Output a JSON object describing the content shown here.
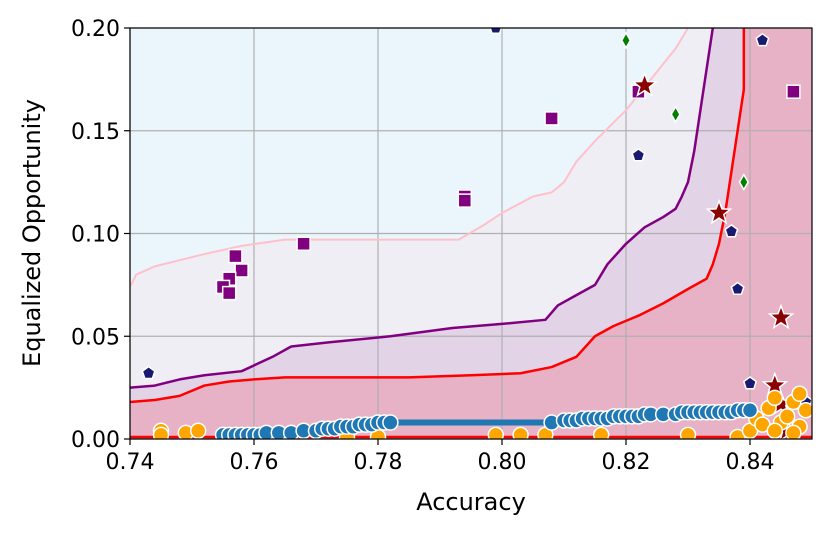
{
  "chart_data": {
    "type": "scatter",
    "xlabel": "Accuracy",
    "ylabel": "Equalized Opportunity",
    "xlim": [
      0.74,
      0.85
    ],
    "ylim": [
      0.0,
      0.2
    ],
    "xticks": [
      "0.74",
      "0.76",
      "0.78",
      "0.80",
      "0.82",
      "0.84"
    ],
    "xtick_values": [
      0.74,
      0.76,
      0.78,
      0.8,
      0.82,
      0.84
    ],
    "yticks": [
      "0.00",
      "0.05",
      "0.10",
      "0.15",
      "0.20"
    ],
    "ytick_values": [
      0.0,
      0.05,
      0.1,
      0.15,
      0.2
    ],
    "grid": true,
    "legend": "none",
    "background_color": "#eaf6fb",
    "regions": [
      {
        "color": "#f0eef5",
        "upper": [
          [
            0.74,
            0.074
          ],
          [
            0.741,
            0.08
          ],
          [
            0.744,
            0.084
          ],
          [
            0.748,
            0.087
          ],
          [
            0.752,
            0.09
          ],
          [
            0.758,
            0.094
          ],
          [
            0.765,
            0.097
          ],
          [
            0.775,
            0.097
          ],
          [
            0.785,
            0.097
          ],
          [
            0.793,
            0.097
          ],
          [
            0.797,
            0.104
          ],
          [
            0.8,
            0.11
          ],
          [
            0.805,
            0.118
          ],
          [
            0.808,
            0.12
          ],
          [
            0.81,
            0.125
          ],
          [
            0.812,
            0.135
          ],
          [
            0.815,
            0.145
          ],
          [
            0.82,
            0.16
          ],
          [
            0.824,
            0.175
          ],
          [
            0.828,
            0.19
          ],
          [
            0.83,
            0.2
          ]
        ]
      },
      {
        "color": "#e3d3e6",
        "upper": [
          [
            0.74,
            0.025
          ],
          [
            0.744,
            0.026
          ],
          [
            0.748,
            0.029
          ],
          [
            0.752,
            0.031
          ],
          [
            0.758,
            0.033
          ],
          [
            0.763,
            0.04
          ],
          [
            0.766,
            0.045
          ],
          [
            0.772,
            0.047
          ],
          [
            0.782,
            0.05
          ],
          [
            0.792,
            0.054
          ],
          [
            0.8,
            0.056
          ],
          [
            0.807,
            0.058
          ],
          [
            0.809,
            0.065
          ],
          [
            0.812,
            0.07
          ],
          [
            0.815,
            0.075
          ],
          [
            0.817,
            0.085
          ],
          [
            0.82,
            0.095
          ],
          [
            0.823,
            0.103
          ],
          [
            0.826,
            0.108
          ],
          [
            0.828,
            0.112
          ],
          [
            0.829,
            0.118
          ],
          [
            0.83,
            0.125
          ],
          [
            0.831,
            0.14
          ],
          [
            0.832,
            0.16
          ],
          [
            0.833,
            0.18
          ],
          [
            0.834,
            0.2
          ]
        ]
      },
      {
        "color": "#e7b2c5",
        "upper": [
          [
            0.74,
            0.018
          ],
          [
            0.744,
            0.019
          ],
          [
            0.748,
            0.021
          ],
          [
            0.752,
            0.026
          ],
          [
            0.756,
            0.028
          ],
          [
            0.76,
            0.029
          ],
          [
            0.765,
            0.03
          ],
          [
            0.775,
            0.03
          ],
          [
            0.785,
            0.03
          ],
          [
            0.795,
            0.031
          ],
          [
            0.803,
            0.032
          ],
          [
            0.808,
            0.035
          ],
          [
            0.812,
            0.04
          ],
          [
            0.815,
            0.05
          ],
          [
            0.818,
            0.055
          ],
          [
            0.822,
            0.06
          ],
          [
            0.826,
            0.066
          ],
          [
            0.83,
            0.073
          ],
          [
            0.833,
            0.078
          ],
          [
            0.834,
            0.085
          ],
          [
            0.835,
            0.095
          ],
          [
            0.836,
            0.11
          ],
          [
            0.837,
            0.13
          ],
          [
            0.838,
            0.15
          ],
          [
            0.839,
            0.17
          ],
          [
            0.839,
            0.2
          ]
        ]
      }
    ],
    "lines": [
      {
        "color": "#ffc0cb",
        "width": 2,
        "points": [
          [
            0.74,
            0.074
          ],
          [
            0.741,
            0.08
          ],
          [
            0.744,
            0.084
          ],
          [
            0.748,
            0.087
          ],
          [
            0.752,
            0.09
          ],
          [
            0.758,
            0.094
          ],
          [
            0.765,
            0.097
          ],
          [
            0.775,
            0.097
          ],
          [
            0.785,
            0.097
          ],
          [
            0.793,
            0.097
          ],
          [
            0.797,
            0.104
          ],
          [
            0.8,
            0.11
          ],
          [
            0.805,
            0.118
          ],
          [
            0.808,
            0.12
          ],
          [
            0.81,
            0.125
          ],
          [
            0.812,
            0.135
          ],
          [
            0.815,
            0.145
          ],
          [
            0.82,
            0.16
          ],
          [
            0.824,
            0.175
          ],
          [
            0.828,
            0.19
          ],
          [
            0.83,
            0.2
          ]
        ]
      },
      {
        "color": "#800080",
        "width": 2.5,
        "points": [
          [
            0.74,
            0.025
          ],
          [
            0.744,
            0.026
          ],
          [
            0.748,
            0.029
          ],
          [
            0.752,
            0.031
          ],
          [
            0.758,
            0.033
          ],
          [
            0.763,
            0.04
          ],
          [
            0.766,
            0.045
          ],
          [
            0.772,
            0.047
          ],
          [
            0.782,
            0.05
          ],
          [
            0.792,
            0.054
          ],
          [
            0.8,
            0.056
          ],
          [
            0.807,
            0.058
          ],
          [
            0.809,
            0.065
          ],
          [
            0.812,
            0.07
          ],
          [
            0.815,
            0.075
          ],
          [
            0.817,
            0.085
          ],
          [
            0.82,
            0.095
          ],
          [
            0.823,
            0.103
          ],
          [
            0.826,
            0.108
          ],
          [
            0.828,
            0.112
          ],
          [
            0.829,
            0.118
          ],
          [
            0.83,
            0.125
          ],
          [
            0.831,
            0.14
          ],
          [
            0.832,
            0.16
          ],
          [
            0.833,
            0.18
          ],
          [
            0.834,
            0.2
          ]
        ]
      },
      {
        "color": "#ff0000",
        "width": 2.5,
        "points": [
          [
            0.74,
            0.018
          ],
          [
            0.744,
            0.019
          ],
          [
            0.748,
            0.021
          ],
          [
            0.752,
            0.026
          ],
          [
            0.756,
            0.028
          ],
          [
            0.76,
            0.029
          ],
          [
            0.765,
            0.03
          ],
          [
            0.775,
            0.03
          ],
          [
            0.785,
            0.03
          ],
          [
            0.795,
            0.031
          ],
          [
            0.803,
            0.032
          ],
          [
            0.808,
            0.035
          ],
          [
            0.812,
            0.04
          ],
          [
            0.815,
            0.05
          ],
          [
            0.818,
            0.055
          ],
          [
            0.822,
            0.06
          ],
          [
            0.826,
            0.066
          ],
          [
            0.83,
            0.073
          ],
          [
            0.833,
            0.078
          ],
          [
            0.834,
            0.085
          ],
          [
            0.835,
            0.095
          ],
          [
            0.836,
            0.11
          ],
          [
            0.837,
            0.13
          ],
          [
            0.838,
            0.15
          ],
          [
            0.839,
            0.17
          ],
          [
            0.839,
            0.2
          ]
        ]
      },
      {
        "color": "#ff0000",
        "width": 2.5,
        "points": [
          [
            0.74,
            0.001
          ],
          [
            0.85,
            0.001
          ]
        ]
      },
      {
        "color": "#1f77b4",
        "width": 6,
        "points": [
          [
            0.782,
            0.008
          ],
          [
            0.808,
            0.008
          ]
        ]
      }
    ],
    "series": [
      {
        "marker": "square",
        "color": "#800080",
        "size": 13,
        "points": [
          [
            0.757,
            0.089
          ],
          [
            0.758,
            0.082
          ],
          [
            0.756,
            0.078
          ],
          [
            0.755,
            0.074
          ],
          [
            0.756,
            0.071
          ],
          [
            0.768,
            0.095
          ],
          [
            0.794,
            0.118
          ],
          [
            0.794,
            0.116
          ],
          [
            0.808,
            0.156
          ],
          [
            0.822,
            0.169
          ],
          [
            0.847,
            0.169
          ]
        ]
      },
      {
        "marker": "pentagon",
        "color": "#191970",
        "size": 11,
        "points": [
          [
            0.743,
            0.032
          ],
          [
            0.799,
            0.2
          ],
          [
            0.822,
            0.138
          ],
          [
            0.837,
            0.101
          ],
          [
            0.838,
            0.073
          ],
          [
            0.84,
            0.027
          ],
          [
            0.842,
            0.194
          ],
          [
            0.849,
            0.018
          ]
        ]
      },
      {
        "marker": "diamond",
        "color": "#008000",
        "size": 13,
        "points": [
          [
            0.82,
            0.194
          ],
          [
            0.828,
            0.158
          ],
          [
            0.839,
            0.125
          ]
        ]
      },
      {
        "marker": "star",
        "color": "#8b0000",
        "size": 24,
        "points": [
          [
            0.823,
            0.172
          ],
          [
            0.835,
            0.11
          ],
          [
            0.845,
            0.059
          ],
          [
            0.844,
            0.026
          ],
          [
            0.845,
            0.017
          ],
          [
            0.846,
            0.004
          ]
        ]
      },
      {
        "marker": "circle",
        "color": "#ffa500",
        "size": 15,
        "points": [
          [
            0.745,
            0.004
          ],
          [
            0.745,
            0.002
          ],
          [
            0.749,
            0.003
          ],
          [
            0.751,
            0.004
          ],
          [
            0.766,
            0.003
          ],
          [
            0.775,
            0.001
          ],
          [
            0.78,
            0.001
          ],
          [
            0.799,
            0.002
          ],
          [
            0.803,
            0.002
          ],
          [
            0.807,
            0.002
          ],
          [
            0.816,
            0.002
          ],
          [
            0.83,
            0.002
          ],
          [
            0.838,
            0.001
          ],
          [
            0.84,
            0.004
          ],
          [
            0.841,
            0.01
          ],
          [
            0.842,
            0.007
          ],
          [
            0.843,
            0.015
          ],
          [
            0.844,
            0.02
          ],
          [
            0.845,
            0.008
          ],
          [
            0.846,
            0.011
          ],
          [
            0.847,
            0.018
          ],
          [
            0.848,
            0.022
          ],
          [
            0.848,
            0.006
          ],
          [
            0.849,
            0.014
          ],
          [
            0.847,
            0.003
          ],
          [
            0.844,
            0.004
          ]
        ]
      },
      {
        "marker": "circle",
        "color": "#1f77b4",
        "size": 15,
        "points": [
          [
            0.755,
            0.002
          ],
          [
            0.756,
            0.002
          ],
          [
            0.757,
            0.002
          ],
          [
            0.758,
            0.002
          ],
          [
            0.759,
            0.002
          ],
          [
            0.76,
            0.002
          ],
          [
            0.761,
            0.002
          ],
          [
            0.762,
            0.003
          ],
          [
            0.764,
            0.003
          ],
          [
            0.766,
            0.003
          ],
          [
            0.768,
            0.004
          ],
          [
            0.77,
            0.004
          ],
          [
            0.771,
            0.005
          ],
          [
            0.772,
            0.005
          ],
          [
            0.773,
            0.005
          ],
          [
            0.774,
            0.006
          ],
          [
            0.775,
            0.006
          ],
          [
            0.776,
            0.006
          ],
          [
            0.777,
            0.007
          ],
          [
            0.778,
            0.007
          ],
          [
            0.779,
            0.007
          ],
          [
            0.78,
            0.008
          ],
          [
            0.781,
            0.008
          ],
          [
            0.782,
            0.008
          ],
          [
            0.808,
            0.008
          ],
          [
            0.81,
            0.009
          ],
          [
            0.811,
            0.009
          ],
          [
            0.812,
            0.009
          ],
          [
            0.813,
            0.01
          ],
          [
            0.814,
            0.01
          ],
          [
            0.815,
            0.01
          ],
          [
            0.816,
            0.01
          ],
          [
            0.817,
            0.01
          ],
          [
            0.818,
            0.011
          ],
          [
            0.819,
            0.011
          ],
          [
            0.82,
            0.011
          ],
          [
            0.821,
            0.011
          ],
          [
            0.822,
            0.011
          ],
          [
            0.823,
            0.012
          ],
          [
            0.824,
            0.012
          ],
          [
            0.826,
            0.012
          ],
          [
            0.828,
            0.012
          ],
          [
            0.829,
            0.013
          ],
          [
            0.83,
            0.013
          ],
          [
            0.831,
            0.013
          ],
          [
            0.832,
            0.013
          ],
          [
            0.833,
            0.013
          ],
          [
            0.834,
            0.013
          ],
          [
            0.835,
            0.013
          ],
          [
            0.836,
            0.013
          ],
          [
            0.837,
            0.013
          ],
          [
            0.838,
            0.014
          ],
          [
            0.839,
            0.014
          ],
          [
            0.84,
            0.014
          ]
        ]
      }
    ]
  }
}
